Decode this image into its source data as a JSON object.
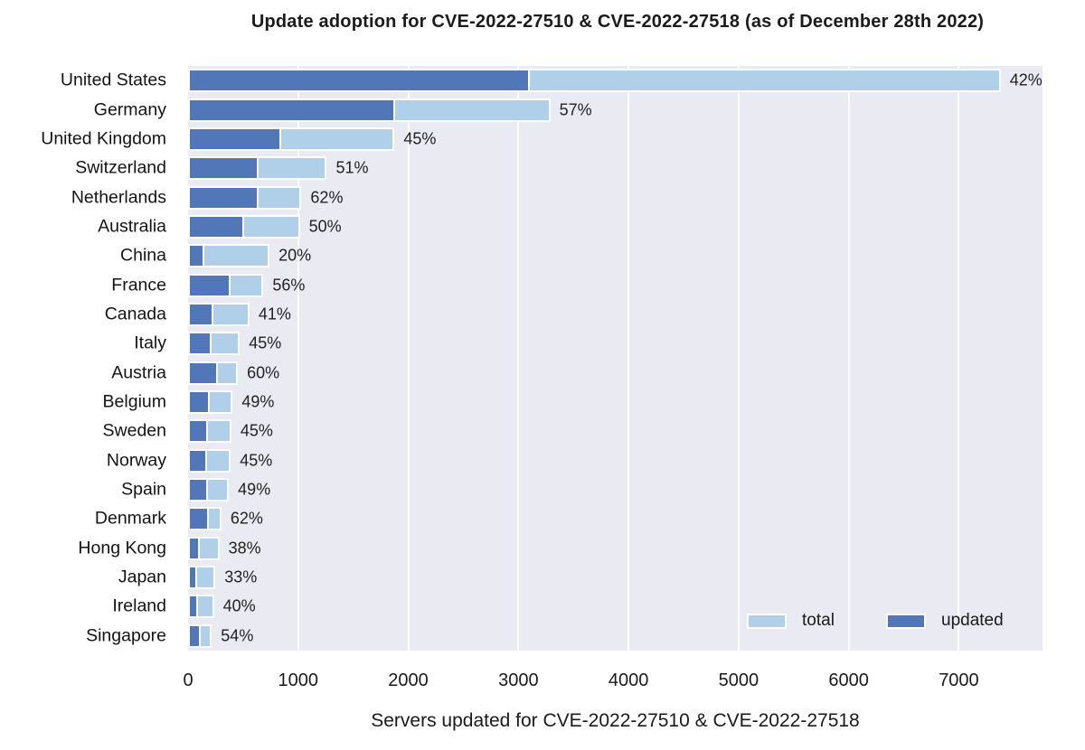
{
  "chart_data": {
    "type": "bar",
    "orientation": "horizontal",
    "title": "Update adoption for CVE-2022-27510 & CVE-2022-27518 (as of December 28th 2022)",
    "xlabel": "Servers updated for CVE-2022-27510 & CVE-2022-27518",
    "xlim": [
      0,
      7760
    ],
    "xticks": [
      0,
      1000,
      2000,
      3000,
      4000,
      5000,
      6000,
      7000
    ],
    "grid": "white vertical gridlines on light background",
    "legend": {
      "position": "lower right inside plot",
      "entries": [
        {
          "label": "total",
          "color_key": "total"
        },
        {
          "label": "updated",
          "color_key": "updated"
        }
      ]
    },
    "colors": {
      "total": "#B0CFE9",
      "updated": "#5277B8",
      "plot_bg": "#E9EAF2",
      "grid": "#FFFFFF",
      "text": "#1A1A1A"
    },
    "rows": [
      {
        "country": "United States",
        "total": 7380,
        "updated": 3100,
        "pct_label": "42%"
      },
      {
        "country": "Germany",
        "total": 3290,
        "updated": 1880,
        "pct_label": "57%"
      },
      {
        "country": "United Kingdom",
        "total": 1875,
        "updated": 845,
        "pct_label": "45%"
      },
      {
        "country": "Switzerland",
        "total": 1260,
        "updated": 642,
        "pct_label": "51%"
      },
      {
        "country": "Netherlands",
        "total": 1030,
        "updated": 639,
        "pct_label": "62%"
      },
      {
        "country": "Australia",
        "total": 1015,
        "updated": 508,
        "pct_label": "50%"
      },
      {
        "country": "China",
        "total": 740,
        "updated": 148,
        "pct_label": "20%"
      },
      {
        "country": "France",
        "total": 685,
        "updated": 384,
        "pct_label": "56%"
      },
      {
        "country": "Canada",
        "total": 557,
        "updated": 228,
        "pct_label": "41%"
      },
      {
        "country": "Italy",
        "total": 470,
        "updated": 212,
        "pct_label": "45%"
      },
      {
        "country": "Austria",
        "total": 453,
        "updated": 272,
        "pct_label": "60%"
      },
      {
        "country": "Belgium",
        "total": 405,
        "updated": 198,
        "pct_label": "49%"
      },
      {
        "country": "Sweden",
        "total": 393,
        "updated": 177,
        "pct_label": "45%"
      },
      {
        "country": "Norway",
        "total": 388,
        "updated": 175,
        "pct_label": "45%"
      },
      {
        "country": "Spain",
        "total": 371,
        "updated": 182,
        "pct_label": "49%"
      },
      {
        "country": "Denmark",
        "total": 303,
        "updated": 188,
        "pct_label": "62%"
      },
      {
        "country": "Hong Kong",
        "total": 284,
        "updated": 108,
        "pct_label": "38%"
      },
      {
        "country": "Japan",
        "total": 248,
        "updated": 82,
        "pct_label": "33%"
      },
      {
        "country": "Ireland",
        "total": 235,
        "updated": 94,
        "pct_label": "40%"
      },
      {
        "country": "Singapore",
        "total": 216,
        "updated": 117,
        "pct_label": "54%"
      }
    ]
  }
}
